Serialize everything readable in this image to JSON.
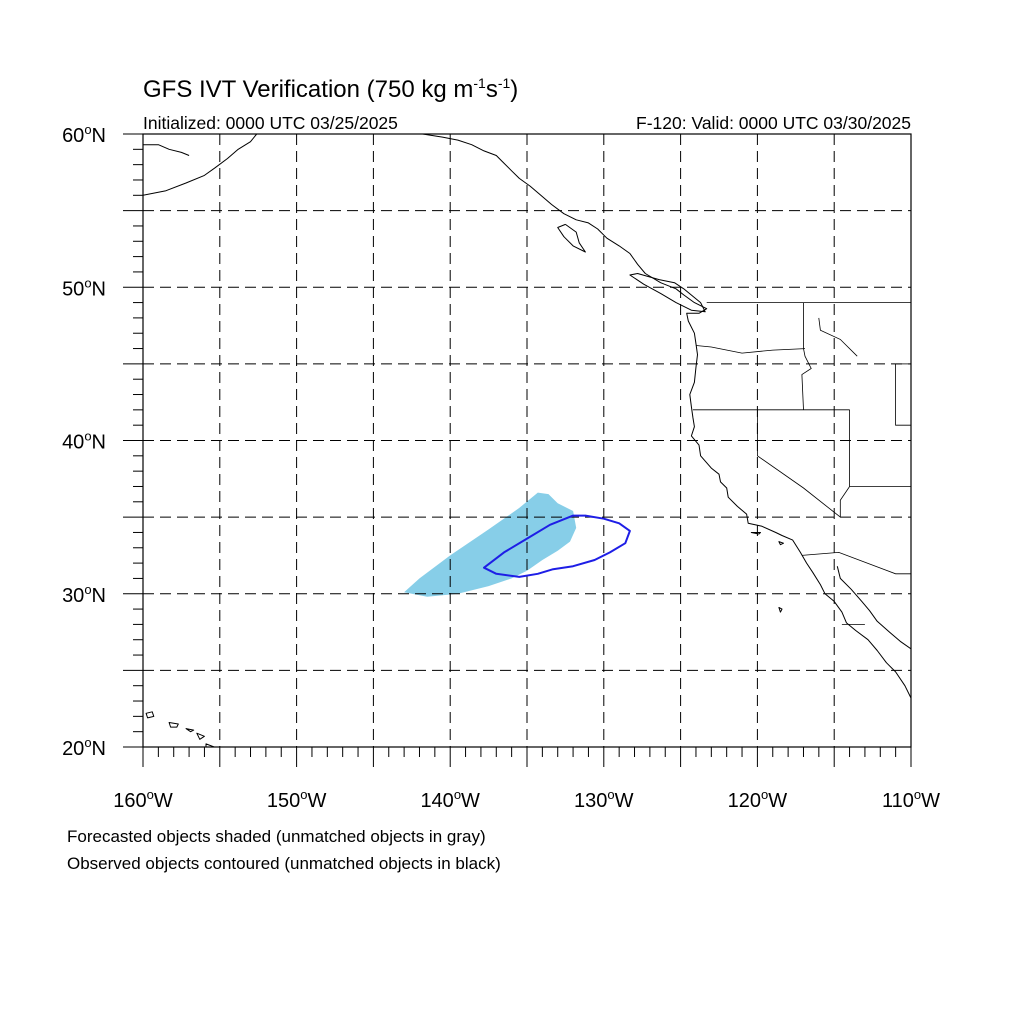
{
  "figure": {
    "title_main": "GFS IVT Verification (750 kg m",
    "title_sup1": "-1",
    "title_mid": "s",
    "title_sup2": "-1",
    "title_end": ")",
    "initialized": "Initialized: 0000 UTC 03/25/2025",
    "valid": "F-120: Valid: 0000 UTC 03/30/2025",
    "footnote_forecast": "Forecasted objects shaded (unmatched objects in gray)",
    "footnote_observed": "Observed objects contoured (unmatched objects in black)"
  },
  "axes": {
    "lon_range": [
      -160,
      -110
    ],
    "lat_range": [
      20,
      60
    ],
    "lon_ticks": [
      {
        "value": -160,
        "label": "160",
        "hemi": "W"
      },
      {
        "value": -150,
        "label": "150",
        "hemi": "W"
      },
      {
        "value": -140,
        "label": "140",
        "hemi": "W"
      },
      {
        "value": -130,
        "label": "130",
        "hemi": "W"
      },
      {
        "value": -120,
        "label": "120",
        "hemi": "W"
      },
      {
        "value": -110,
        "label": "110",
        "hemi": "W"
      }
    ],
    "lat_ticks": [
      {
        "value": 60,
        "label": "60",
        "hemi": "N"
      },
      {
        "value": 50,
        "label": "50",
        "hemi": "N"
      },
      {
        "value": 40,
        "label": "40",
        "hemi": "N"
      },
      {
        "value": 30,
        "label": "30",
        "hemi": "N"
      },
      {
        "value": 20,
        "label": "20",
        "hemi": "N"
      }
    ],
    "grid_spacing_deg": 5
  },
  "objects": {
    "forecast_matched": {
      "color": "#87CEE8",
      "polygon": [
        [
          -143.0,
          30.1
        ],
        [
          -141.5,
          29.8
        ],
        [
          -139.5,
          30.0
        ],
        [
          -137.5,
          30.5
        ],
        [
          -136.0,
          31.0
        ],
        [
          -135.0,
          31.5
        ],
        [
          -134.0,
          32.2
        ],
        [
          -133.0,
          32.8
        ],
        [
          -132.2,
          33.4
        ],
        [
          -131.8,
          34.3
        ],
        [
          -132.0,
          35.4
        ],
        [
          -133.0,
          35.9
        ],
        [
          -133.6,
          36.5
        ],
        [
          -134.3,
          36.6
        ],
        [
          -135.5,
          35.6
        ],
        [
          -137.5,
          34.2
        ],
        [
          -140.0,
          32.5
        ],
        [
          -142.0,
          31.0
        ]
      ]
    },
    "observed_matched": {
      "color": "#1E1EE6",
      "polygon": [
        [
          -137.8,
          31.7
        ],
        [
          -136.5,
          32.7
        ],
        [
          -135.0,
          33.6
        ],
        [
          -133.5,
          34.5
        ],
        [
          -132.0,
          35.1
        ],
        [
          -131.2,
          35.1
        ],
        [
          -130.0,
          34.9
        ],
        [
          -129.0,
          34.6
        ],
        [
          -128.3,
          34.1
        ],
        [
          -128.6,
          33.3
        ],
        [
          -129.6,
          32.7
        ],
        [
          -130.6,
          32.2
        ],
        [
          -132.0,
          31.8
        ],
        [
          -133.3,
          31.6
        ],
        [
          -134.3,
          31.3
        ],
        [
          -135.5,
          31.1
        ],
        [
          -137.0,
          31.3
        ]
      ]
    }
  },
  "map_features": {
    "coastlines": [
      [
        [
          -160,
          56.0
        ],
        [
          -158.5,
          56.3
        ],
        [
          -157.2,
          56.8
        ],
        [
          -156.0,
          57.3
        ],
        [
          -155.3,
          57.8
        ],
        [
          -154.5,
          58.4
        ],
        [
          -153.8,
          59.0
        ],
        [
          -153.0,
          59.5
        ],
        [
          -152.6,
          60.0
        ]
      ],
      [
        [
          -160,
          59.3
        ],
        [
          -159.0,
          59.3
        ],
        [
          -158.3,
          59.0
        ],
        [
          -157.5,
          58.8
        ],
        [
          -157.0,
          58.6
        ]
      ],
      [
        [
          -146.5,
          60.0
        ],
        [
          -145.0,
          60.2
        ],
        [
          -143.5,
          60.0
        ],
        [
          -141.8,
          60.0
        ],
        [
          -140.5,
          59.8
        ],
        [
          -139.5,
          59.6
        ],
        [
          -138.6,
          59.3
        ],
        [
          -137.8,
          58.9
        ],
        [
          -137.0,
          58.6
        ],
        [
          -136.6,
          58.2
        ],
        [
          -136.0,
          57.6
        ],
        [
          -135.5,
          57.1
        ],
        [
          -134.8,
          56.6
        ],
        [
          -134.1,
          56.0
        ],
        [
          -133.4,
          55.4
        ],
        [
          -132.6,
          54.8
        ],
        [
          -131.8,
          54.4
        ],
        [
          -131.0,
          54.2
        ],
        [
          -130.4,
          53.8
        ],
        [
          -129.8,
          53.2
        ],
        [
          -129.0,
          52.7
        ],
        [
          -128.3,
          52.2
        ],
        [
          -127.8,
          51.5
        ],
        [
          -127.3,
          50.9
        ],
        [
          -126.3,
          50.3
        ],
        [
          -125.3,
          49.9
        ],
        [
          -124.8,
          49.5
        ],
        [
          -124.1,
          49.0
        ],
        [
          -123.3,
          48.6
        ],
        [
          -123.8,
          48.3
        ],
        [
          -124.6,
          48.3
        ],
        [
          -124.5,
          47.8
        ],
        [
          -124.1,
          47.0
        ],
        [
          -124.0,
          46.3
        ],
        [
          -123.9,
          45.6
        ],
        [
          -124.0,
          44.8
        ],
        [
          -124.1,
          43.8
        ],
        [
          -124.4,
          43.0
        ],
        [
          -124.3,
          42.2
        ],
        [
          -124.2,
          41.5
        ],
        [
          -124.1,
          40.9
        ],
        [
          -124.3,
          40.3
        ],
        [
          -123.8,
          39.7
        ],
        [
          -123.7,
          39.0
        ],
        [
          -123.0,
          38.2
        ],
        [
          -122.5,
          37.8
        ],
        [
          -122.4,
          37.3
        ],
        [
          -122.0,
          36.9
        ],
        [
          -121.9,
          36.3
        ],
        [
          -121.3,
          35.7
        ],
        [
          -120.7,
          35.2
        ],
        [
          -120.6,
          34.6
        ],
        [
          -119.7,
          34.4
        ],
        [
          -118.8,
          34.0
        ],
        [
          -118.4,
          33.8
        ],
        [
          -117.7,
          33.5
        ],
        [
          -117.2,
          32.7
        ],
        [
          -116.8,
          32.0
        ],
        [
          -116.4,
          31.4
        ],
        [
          -115.9,
          30.6
        ],
        [
          -115.6,
          30.0
        ],
        [
          -115.0,
          29.5
        ],
        [
          -114.5,
          28.8
        ],
        [
          -114.2,
          28.1
        ],
        [
          -113.6,
          27.6
        ],
        [
          -112.8,
          27.0
        ],
        [
          -112.2,
          26.3
        ],
        [
          -111.6,
          25.5
        ],
        [
          -111.0,
          24.9
        ],
        [
          -110.4,
          24.0
        ],
        [
          -110.0,
          23.2
        ]
      ],
      [
        [
          -114.8,
          31.8
        ],
        [
          -114.6,
          31.0
        ],
        [
          -113.9,
          30.3
        ],
        [
          -113.2,
          29.5
        ],
        [
          -112.7,
          28.9
        ],
        [
          -112.2,
          28.2
        ],
        [
          -111.4,
          27.5
        ],
        [
          -110.7,
          26.9
        ],
        [
          -110.0,
          26.4
        ]
      ],
      [
        [
          -124.8,
          49.9
        ],
        [
          -125.4,
          50.3
        ],
        [
          -126.4,
          50.5
        ],
        [
          -127.8,
          50.9
        ],
        [
          -128.3,
          50.8
        ],
        [
          -127.4,
          50.2
        ],
        [
          -126.3,
          49.6
        ],
        [
          -125.3,
          49.0
        ],
        [
          -124.3,
          48.5
        ],
        [
          -123.4,
          48.4
        ],
        [
          -123.7,
          49.0
        ],
        [
          -124.8,
          49.9
        ]
      ],
      [
        [
          -132.5,
          54.1
        ],
        [
          -131.8,
          53.6
        ],
        [
          -131.6,
          52.9
        ],
        [
          -131.2,
          52.3
        ],
        [
          -132.0,
          52.7
        ],
        [
          -132.6,
          53.3
        ],
        [
          -133.0,
          53.9
        ],
        [
          -132.5,
          54.1
        ]
      ]
    ],
    "islands": [
      [
        [
          -159.8,
          22.2
        ],
        [
          -159.4,
          22.3
        ],
        [
          -159.3,
          22.0
        ],
        [
          -159.7,
          21.9
        ],
        [
          -159.8,
          22.2
        ]
      ],
      [
        [
          -158.3,
          21.6
        ],
        [
          -157.7,
          21.5
        ],
        [
          -157.8,
          21.3
        ],
        [
          -158.2,
          21.3
        ],
        [
          -158.3,
          21.6
        ]
      ],
      [
        [
          -157.2,
          21.2
        ],
        [
          -156.7,
          21.1
        ],
        [
          -156.9,
          21.0
        ],
        [
          -157.2,
          21.2
        ]
      ],
      [
        [
          -156.5,
          20.9
        ],
        [
          -156.0,
          20.7
        ],
        [
          -156.3,
          20.5
        ],
        [
          -156.5,
          20.9
        ]
      ],
      [
        [
          -155.9,
          20.2
        ],
        [
          -155.1,
          19.9
        ],
        [
          -155.0,
          19.5
        ],
        [
          -155.6,
          19.2
        ],
        [
          -155.9,
          19.6
        ],
        [
          -155.9,
          20.2
        ]
      ],
      [
        [
          -120.4,
          34.0
        ],
        [
          -119.8,
          34.0
        ],
        [
          -119.9,
          33.9
        ],
        [
          -120.4,
          34.0
        ]
      ],
      [
        [
          -118.6,
          33.4
        ],
        [
          -118.3,
          33.3
        ],
        [
          -118.5,
          33.2
        ],
        [
          -118.6,
          33.4
        ]
      ],
      [
        [
          -118.6,
          29.1
        ],
        [
          -118.4,
          29.0
        ],
        [
          -118.5,
          28.8
        ],
        [
          -118.6,
          29.1
        ]
      ]
    ],
    "borders": [
      [
        [
          -123.3,
          49.0
        ],
        [
          -110,
          49.0
        ]
      ],
      [
        [
          -124.0,
          46.2
        ],
        [
          -123.0,
          46.1
        ],
        [
          -121.0,
          45.7
        ],
        [
          -119.0,
          45.9
        ],
        [
          -116.9,
          46.0
        ]
      ],
      [
        [
          -117.0,
          49.0
        ],
        [
          -117.0,
          46.0
        ],
        [
          -116.9,
          45.5
        ],
        [
          -116.5,
          44.7
        ],
        [
          -117.1,
          44.3
        ],
        [
          -117.0,
          42.0
        ]
      ],
      [
        [
          -124.2,
          42.0
        ],
        [
          -114.0,
          42.0
        ]
      ],
      [
        [
          -120.0,
          42.0
        ],
        [
          -120.0,
          39.0
        ],
        [
          -117.0,
          36.9
        ],
        [
          -114.6,
          35.0
        ]
      ],
      [
        [
          -114.0,
          42.0
        ],
        [
          -114.0,
          37.0
        ],
        [
          -114.6,
          36.1
        ],
        [
          -114.6,
          35.0
        ]
      ],
      [
        [
          -114.0,
          37.0
        ],
        [
          -110,
          37.0
        ]
      ],
      [
        [
          -111.0,
          45.0
        ],
        [
          -110,
          45.0
        ]
      ],
      [
        [
          -111.0,
          45.0
        ],
        [
          -111.0,
          41.0
        ],
        [
          -110,
          41.0
        ]
      ],
      [
        [
          -117.1,
          32.5
        ],
        [
          -114.7,
          32.7
        ],
        [
          -111.0,
          31.3
        ],
        [
          -110,
          31.3
        ]
      ],
      [
        [
          -114.5,
          28.0
        ],
        [
          -113.0,
          28.0
        ]
      ],
      [
        [
          -116.0,
          48.0
        ],
        [
          -115.9,
          47.2
        ],
        [
          -114.6,
          46.6
        ],
        [
          -113.5,
          45.5
        ]
      ]
    ]
  }
}
